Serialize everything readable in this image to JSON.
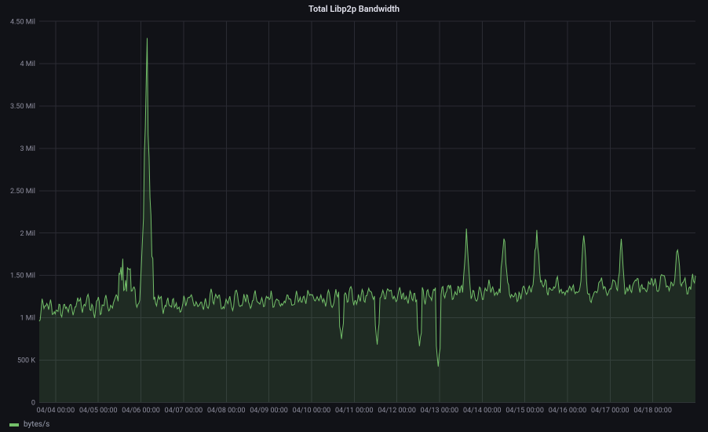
{
  "title": "Total Libp2p Bandwidth",
  "legend": {
    "series_label": "bytes/s"
  },
  "chart": {
    "type": "area",
    "line_color": "#73bf69",
    "fill_color": "#73bf6926",
    "background_color": "#111217",
    "grid_color": "#2a2b33",
    "title_fontsize": 11,
    "axis_fontsize": 9,
    "line_width": 1,
    "ylim": [
      0,
      4500000
    ],
    "ytick_step": 500000,
    "ytick_labels": [
      "0",
      "500 K",
      "1 Mil",
      "1.50 Mil",
      "2 Mil",
      "2.50 Mil",
      "3 Mil",
      "3.50 Mil",
      "4 Mil",
      "4.50 Mil"
    ],
    "xtick_labels": [
      "04/04 00:00",
      "04/05 00:00",
      "04/06 00:00",
      "04/07 00:00",
      "04/08 00:00",
      "04/09 00:00",
      "04/10 00:00",
      "04/11 00:00",
      "04/12 00:00",
      "04/13 00:00",
      "04/14 00:00",
      "04/15 00:00",
      "04/16 00:00",
      "04/17 00:00",
      "04/18 00:00"
    ],
    "n_points": 700,
    "baseline_mean": 1250000,
    "noise_amp": 300000,
    "spike": {
      "index": 115,
      "peak": 4270000,
      "width": 12,
      "shoulder": 2000000
    },
    "trend_slope": 150000,
    "secondary_peaks": [
      {
        "index": 530,
        "peak": 2050000
      },
      {
        "index": 455,
        "peak": 2000000
      },
      {
        "index": 495,
        "peak": 2000000
      },
      {
        "index": 580,
        "peak": 1950000
      },
      {
        "index": 620,
        "peak": 1900000
      },
      {
        "index": 680,
        "peak": 1850000
      }
    ],
    "dips": [
      {
        "index": 425,
        "value": 440000
      },
      {
        "index": 322,
        "value": 720000
      },
      {
        "index": 360,
        "value": 700000
      },
      {
        "index": 405,
        "value": 650000
      }
    ]
  }
}
